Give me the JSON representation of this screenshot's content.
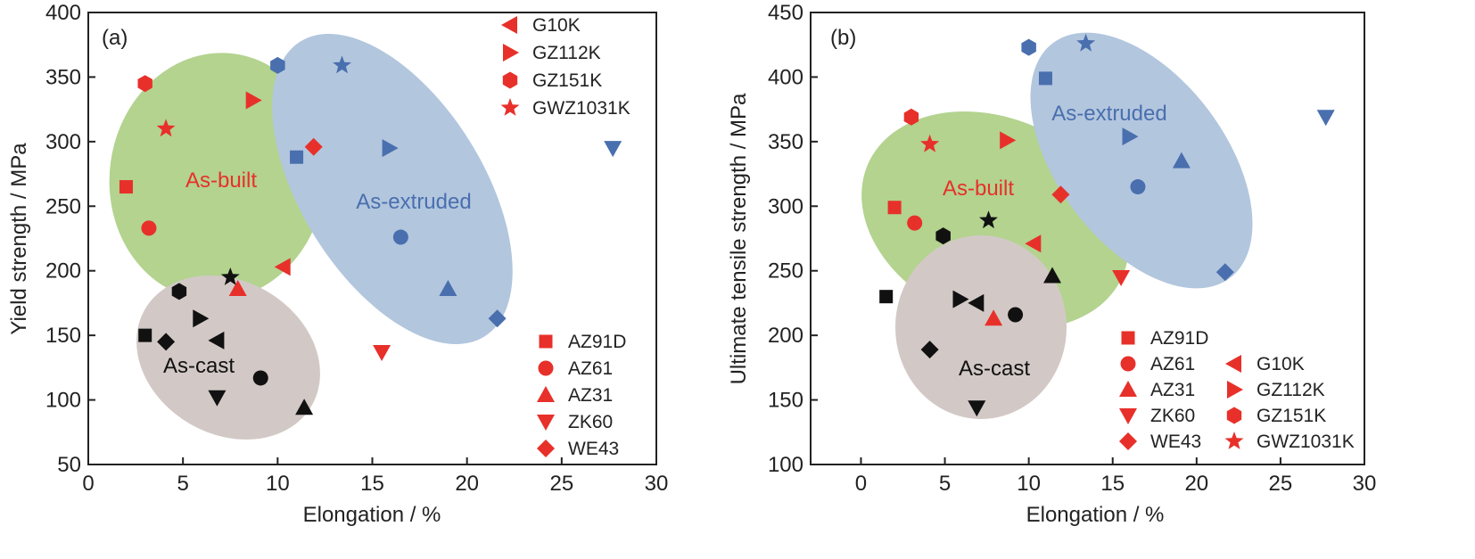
{
  "colors": {
    "red": "#e8302a",
    "blue": "#4a6fae",
    "black": "#111111",
    "as_built_fill": "#b3d38f",
    "as_extruded_fill": "#b2c6de",
    "as_cast_fill": "#d2c9c6",
    "as_built_text": "#e8302a",
    "as_extruded_text": "#4a6fae",
    "as_cast_text": "#111111"
  },
  "legend_marker_color": "red",
  "materials": [
    {
      "name": "AZ91D",
      "marker": "square"
    },
    {
      "name": "AZ61",
      "marker": "circle"
    },
    {
      "name": "AZ31",
      "marker": "triangle-up"
    },
    {
      "name": "ZK60",
      "marker": "triangle-down"
    },
    {
      "name": "WE43",
      "marker": "diamond"
    },
    {
      "name": "G10K",
      "marker": "triangle-left"
    },
    {
      "name": "GZ112K",
      "marker": "triangle-right"
    },
    {
      "name": "GZ151K",
      "marker": "hexagon"
    },
    {
      "name": "GWZ1031K",
      "marker": "star"
    }
  ],
  "conditions": [
    {
      "key": "as_built",
      "label": "As-built",
      "color": "red"
    },
    {
      "key": "as_extruded",
      "label": "As-extruded",
      "color": "blue"
    },
    {
      "key": "as_cast",
      "label": "As-cast",
      "color": "black"
    }
  ],
  "chart_data": [
    {
      "type": "scatter",
      "panel_label": "(a)",
      "xlabel": "Elongation / %",
      "ylabel": "Yield strength / MPa",
      "xlim": [
        0,
        30
      ],
      "ylim": [
        50,
        400
      ],
      "xticks": [
        0,
        5,
        10,
        15,
        20,
        25,
        30
      ],
      "yticks": [
        50,
        100,
        150,
        200,
        250,
        300,
        350,
        400
      ],
      "grid": false,
      "legend_placement": "top-right (G10K, GZ112K, GZ151K, GWZ1031K) and bottom-right (AZ91D, AZ61, AZ31, ZK60, WE43)",
      "regions": [
        {
          "label": "As-built",
          "condition": "as_built"
        },
        {
          "label": "As-extruded",
          "condition": "as_extruded"
        },
        {
          "label": "As-cast",
          "condition": "as_cast"
        }
      ],
      "series": [
        {
          "name": "AZ91D",
          "points": [
            {
              "x": 2.0,
              "y": 265,
              "c": "as_built"
            },
            {
              "x": 11.0,
              "y": 288,
              "c": "as_extruded"
            },
            {
              "x": 3.0,
              "y": 150,
              "c": "as_cast"
            }
          ]
        },
        {
          "name": "AZ61",
          "points": [
            {
              "x": 3.2,
              "y": 233,
              "c": "as_built"
            },
            {
              "x": 16.5,
              "y": 226,
              "c": "as_extruded"
            },
            {
              "x": 9.1,
              "y": 117,
              "c": "as_cast"
            }
          ]
        },
        {
          "name": "AZ31",
          "points": [
            {
              "x": 7.9,
              "y": 186,
              "c": "as_built"
            },
            {
              "x": 19.0,
              "y": 186,
              "c": "as_extruded"
            },
            {
              "x": 11.4,
              "y": 94,
              "c": "as_cast"
            }
          ]
        },
        {
          "name": "ZK60",
          "points": [
            {
              "x": 15.5,
              "y": 137,
              "c": "as_built"
            },
            {
              "x": 27.7,
              "y": 295,
              "c": "as_extruded"
            },
            {
              "x": 6.8,
              "y": 102,
              "c": "as_cast"
            }
          ]
        },
        {
          "name": "WE43",
          "points": [
            {
              "x": 11.9,
              "y": 296,
              "c": "as_built"
            },
            {
              "x": 21.6,
              "y": 163,
              "c": "as_extruded"
            },
            {
              "x": 4.1,
              "y": 145,
              "c": "as_cast"
            }
          ]
        },
        {
          "name": "G10K",
          "points": [
            {
              "x": 10.3,
              "y": 203,
              "c": "as_built"
            },
            {
              "x": 6.8,
              "y": 146,
              "c": "as_cast"
            }
          ]
        },
        {
          "name": "GZ112K",
          "points": [
            {
              "x": 8.7,
              "y": 332,
              "c": "as_built"
            },
            {
              "x": 15.9,
              "y": 295,
              "c": "as_extruded"
            },
            {
              "x": 5.9,
              "y": 163,
              "c": "as_cast"
            }
          ]
        },
        {
          "name": "GZ151K",
          "points": [
            {
              "x": 3.0,
              "y": 345,
              "c": "as_built"
            },
            {
              "x": 10.0,
              "y": 359,
              "c": "as_extruded"
            },
            {
              "x": 4.8,
              "y": 184,
              "c": "as_cast"
            }
          ]
        },
        {
          "name": "GWZ1031K",
          "points": [
            {
              "x": 4.1,
              "y": 310,
              "c": "as_built"
            },
            {
              "x": 13.4,
              "y": 359,
              "c": "as_extruded"
            },
            {
              "x": 7.5,
              "y": 195,
              "c": "as_cast"
            }
          ]
        }
      ]
    },
    {
      "type": "scatter",
      "panel_label": "(b)",
      "xlabel": "Elongation / %",
      "ylabel": "Ultimate tensile strength / MPa",
      "xlim": [
        -3,
        30
      ],
      "ylim": [
        100,
        450
      ],
      "xticks": [
        0,
        5,
        10,
        15,
        20,
        25,
        30
      ],
      "yticks": [
        100,
        150,
        200,
        250,
        300,
        350,
        400,
        450
      ],
      "grid": false,
      "legend_placement": "bottom-right, two columns",
      "regions": [
        {
          "label": "As-built",
          "condition": "as_built"
        },
        {
          "label": "As-extruded",
          "condition": "as_extruded"
        },
        {
          "label": "As-cast",
          "condition": "as_cast"
        }
      ],
      "series": [
        {
          "name": "AZ91D",
          "points": [
            {
              "x": 2.0,
              "y": 299,
              "c": "as_built"
            },
            {
              "x": 11.0,
              "y": 399,
              "c": "as_extruded"
            },
            {
              "x": 1.5,
              "y": 230,
              "c": "as_cast"
            }
          ]
        },
        {
          "name": "AZ61",
          "points": [
            {
              "x": 3.2,
              "y": 287,
              "c": "as_built"
            },
            {
              "x": 16.5,
              "y": 315,
              "c": "as_extruded"
            },
            {
              "x": 9.2,
              "y": 216,
              "c": "as_cast"
            }
          ]
        },
        {
          "name": "AZ31",
          "points": [
            {
              "x": 7.9,
              "y": 213,
              "c": "as_built"
            },
            {
              "x": 19.1,
              "y": 335,
              "c": "as_extruded"
            },
            {
              "x": 11.4,
              "y": 246,
              "c": "as_cast"
            }
          ]
        },
        {
          "name": "ZK60",
          "points": [
            {
              "x": 15.5,
              "y": 245,
              "c": "as_built"
            },
            {
              "x": 27.7,
              "y": 369,
              "c": "as_extruded"
            },
            {
              "x": 6.9,
              "y": 144,
              "c": "as_cast"
            }
          ]
        },
        {
          "name": "WE43",
          "points": [
            {
              "x": 11.9,
              "y": 309,
              "c": "as_built"
            },
            {
              "x": 21.7,
              "y": 249,
              "c": "as_extruded"
            },
            {
              "x": 4.1,
              "y": 189,
              "c": "as_cast"
            }
          ]
        },
        {
          "name": "G10K",
          "points": [
            {
              "x": 10.3,
              "y": 271,
              "c": "as_built"
            },
            {
              "x": 6.9,
              "y": 225,
              "c": "as_cast"
            }
          ]
        },
        {
          "name": "GZ112K",
          "points": [
            {
              "x": 8.7,
              "y": 351,
              "c": "as_built"
            },
            {
              "x": 16.0,
              "y": 354,
              "c": "as_extruded"
            },
            {
              "x": 5.9,
              "y": 228,
              "c": "as_cast"
            }
          ]
        },
        {
          "name": "GZ151K",
          "points": [
            {
              "x": 3.0,
              "y": 369,
              "c": "as_built"
            },
            {
              "x": 10.0,
              "y": 423,
              "c": "as_extruded"
            },
            {
              "x": 4.9,
              "y": 277,
              "c": "as_cast"
            }
          ]
        },
        {
          "name": "GWZ1031K",
          "points": [
            {
              "x": 4.1,
              "y": 348,
              "c": "as_built"
            },
            {
              "x": 13.4,
              "y": 426,
              "c": "as_extruded"
            },
            {
              "x": 7.6,
              "y": 289,
              "c": "as_cast"
            }
          ]
        }
      ]
    }
  ]
}
